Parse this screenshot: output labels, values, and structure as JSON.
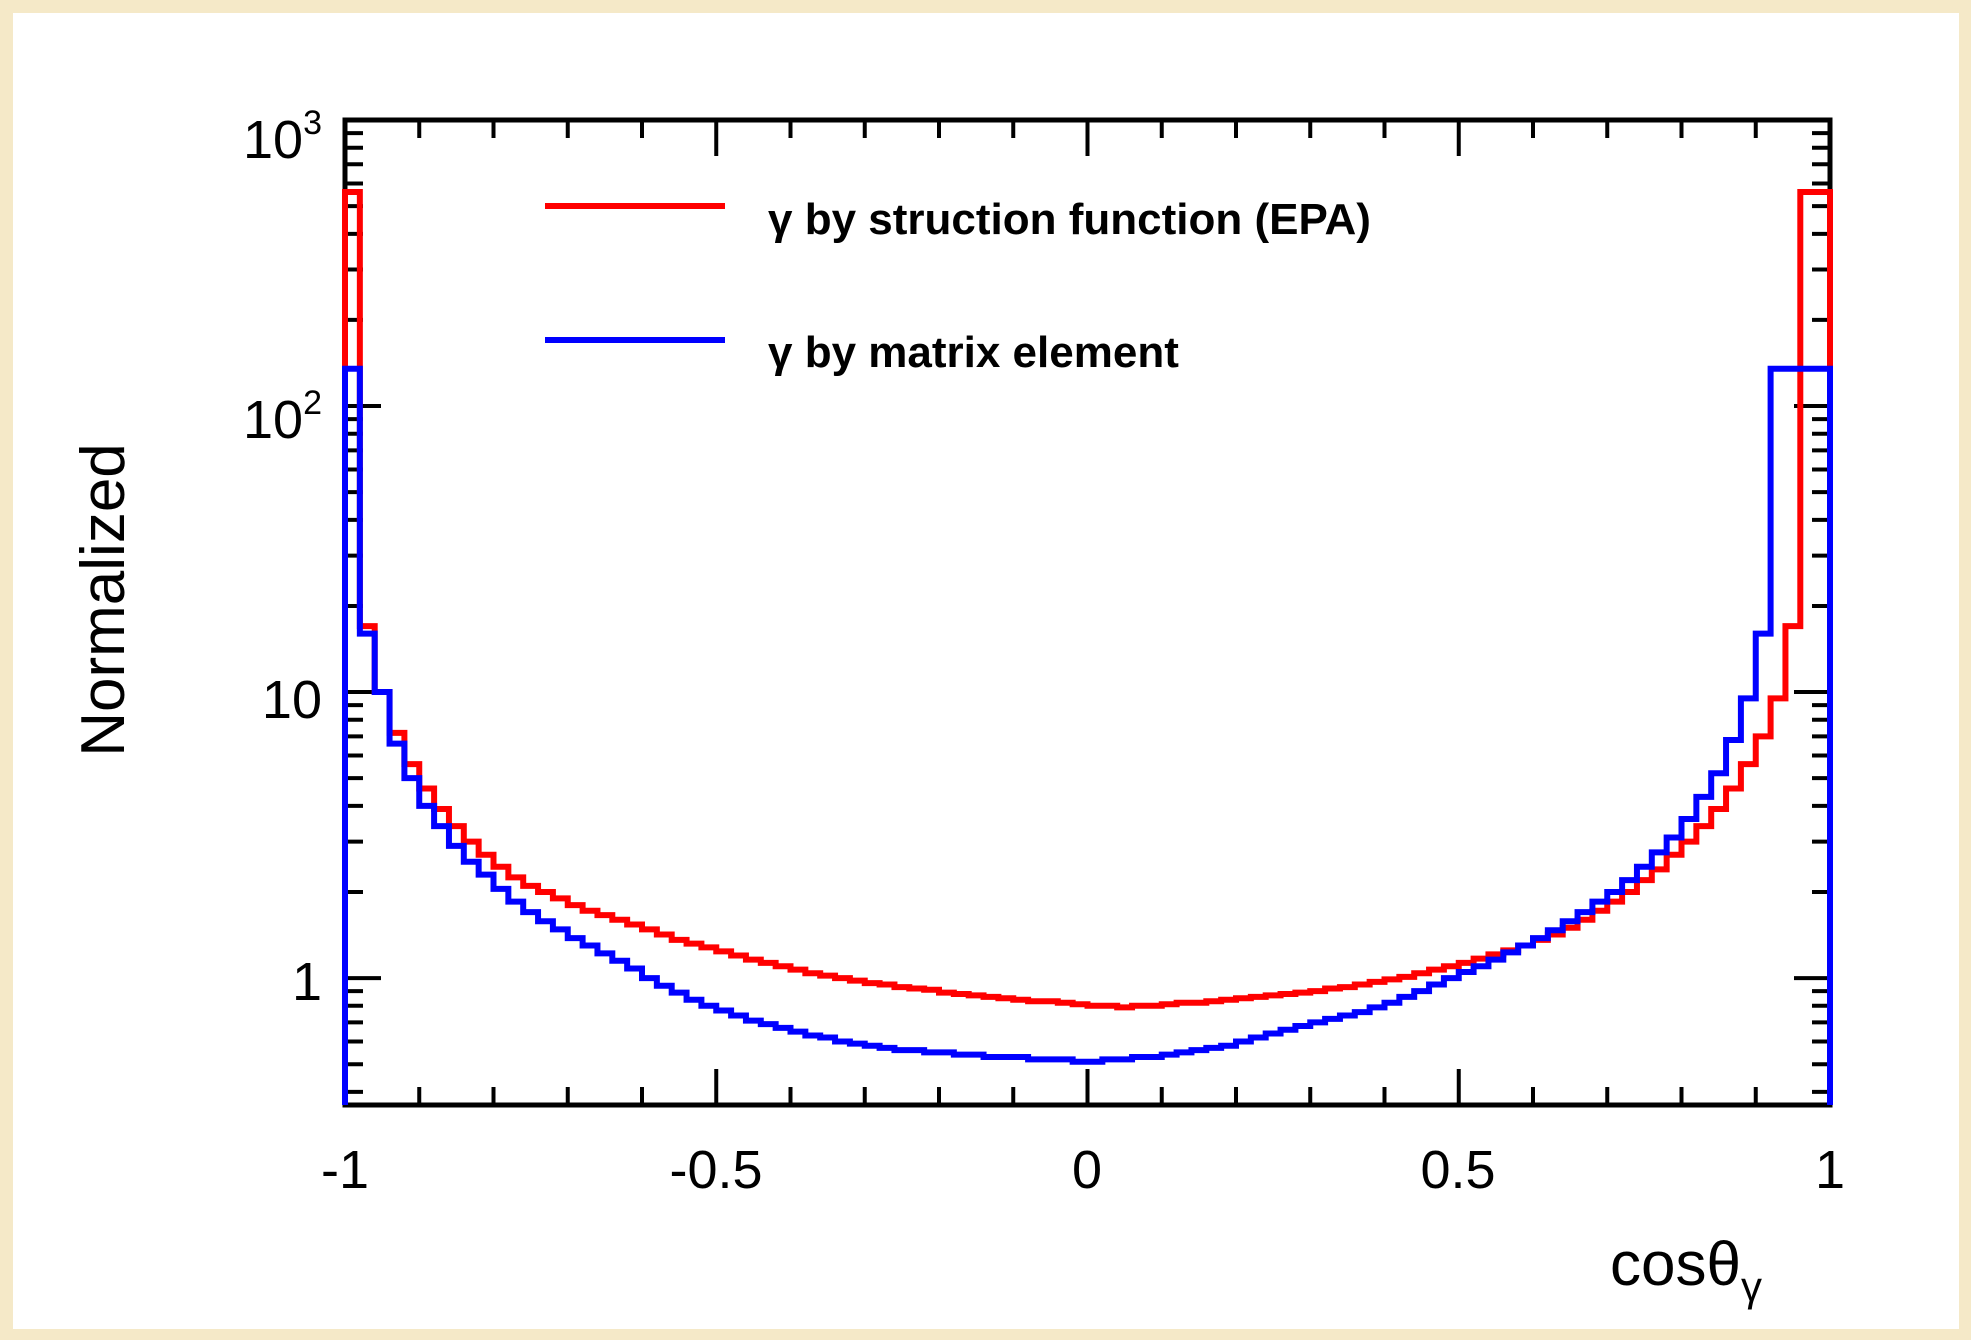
{
  "chart_data": {
    "type": "line",
    "style": "step-histogram",
    "xlabel_base": "cosθ",
    "xlabel_sub": "γ",
    "ylabel": "Normalized",
    "xlim": [
      -1,
      1
    ],
    "ylim": [
      0.36,
      1000
    ],
    "yscale": "log",
    "grid": false,
    "legend_position": "top-center",
    "x_tick_labels": [
      "-1",
      "-0.5",
      "0",
      "0.5",
      "1"
    ],
    "y_tick_labels": [
      {
        "base": "1",
        "exp": ""
      },
      {
        "base": "10",
        "exp": ""
      },
      {
        "base": "10",
        "exp": "2"
      },
      {
        "base": "10",
        "exp": "3"
      }
    ],
    "bin_edges_start": -1.0,
    "bin_width": 0.02,
    "series": [
      {
        "name": "γ by struction function (EPA)",
        "color": "#ff0000",
        "values": [
          560,
          17,
          10,
          7.2,
          5.6,
          4.6,
          3.9,
          3.4,
          3.0,
          2.7,
          2.45,
          2.25,
          2.1,
          2.0,
          1.9,
          1.8,
          1.72,
          1.66,
          1.6,
          1.54,
          1.48,
          1.42,
          1.36,
          1.32,
          1.28,
          1.24,
          1.2,
          1.16,
          1.13,
          1.1,
          1.07,
          1.04,
          1.02,
          1.0,
          0.98,
          0.96,
          0.95,
          0.93,
          0.92,
          0.91,
          0.89,
          0.88,
          0.87,
          0.86,
          0.85,
          0.84,
          0.83,
          0.83,
          0.82,
          0.81,
          0.8,
          0.8,
          0.79,
          0.8,
          0.8,
          0.81,
          0.82,
          0.82,
          0.83,
          0.84,
          0.85,
          0.86,
          0.87,
          0.88,
          0.89,
          0.9,
          0.92,
          0.93,
          0.95,
          0.97,
          0.99,
          1.01,
          1.04,
          1.07,
          1.1,
          1.13,
          1.17,
          1.21,
          1.25,
          1.3,
          1.36,
          1.42,
          1.5,
          1.6,
          1.72,
          1.85,
          2.0,
          2.2,
          2.4,
          2.7,
          3.0,
          3.4,
          3.9,
          4.6,
          5.6,
          7.0,
          9.5,
          17,
          560,
          560
        ]
      },
      {
        "name": "γ by matrix element",
        "color": "#0000ff",
        "values": [
          135,
          16,
          10,
          6.6,
          5.0,
          4.0,
          3.4,
          2.9,
          2.55,
          2.3,
          2.05,
          1.85,
          1.7,
          1.58,
          1.48,
          1.38,
          1.3,
          1.22,
          1.15,
          1.08,
          1.0,
          0.94,
          0.89,
          0.84,
          0.8,
          0.77,
          0.74,
          0.71,
          0.69,
          0.67,
          0.65,
          0.63,
          0.62,
          0.6,
          0.59,
          0.58,
          0.57,
          0.56,
          0.56,
          0.55,
          0.55,
          0.54,
          0.54,
          0.53,
          0.53,
          0.53,
          0.52,
          0.52,
          0.52,
          0.51,
          0.51,
          0.52,
          0.52,
          0.53,
          0.53,
          0.54,
          0.55,
          0.56,
          0.57,
          0.58,
          0.6,
          0.62,
          0.64,
          0.66,
          0.68,
          0.7,
          0.72,
          0.74,
          0.76,
          0.79,
          0.82,
          0.86,
          0.9,
          0.95,
          1.0,
          1.05,
          1.1,
          1.16,
          1.23,
          1.3,
          1.38,
          1.47,
          1.58,
          1.7,
          1.85,
          2.0,
          2.2,
          2.45,
          2.75,
          3.1,
          3.6,
          4.3,
          5.2,
          6.8,
          9.5,
          16,
          135,
          135,
          135,
          135
        ]
      }
    ]
  }
}
